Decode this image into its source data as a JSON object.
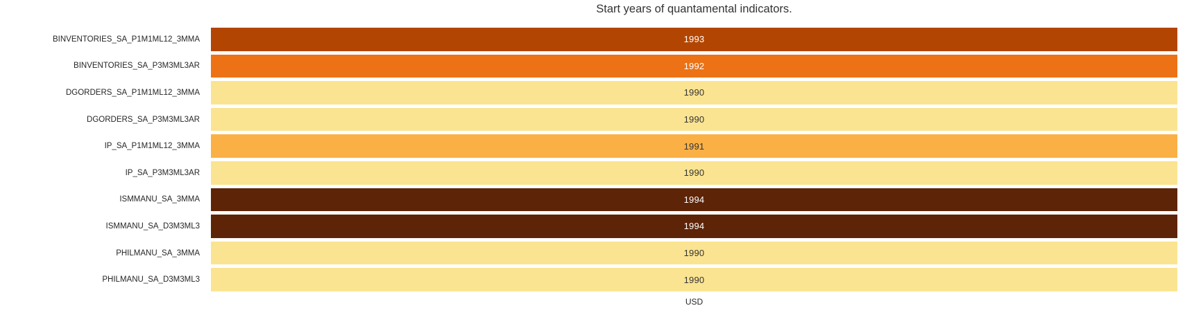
{
  "title": "Start years of quantamental indicators.",
  "x_axis_label": "USD",
  "colors": {
    "background": "#ffffff",
    "title_text": "#333333",
    "axis_label_text": "#262626",
    "value_text_on_dark": "#ffffff",
    "value_text_on_light": "#333333",
    "year_1990": "#fbe491",
    "year_1991": "#fbb045",
    "year_1992": "#ec7215",
    "year_1993": "#b34502",
    "year_1994": "#5e2408"
  },
  "chart_data": {
    "type": "heatmap",
    "title": "Start years of quantamental indicators.",
    "columns": [
      "USD"
    ],
    "rows": [
      "BINVENTORIES_SA_P1M1ML12_3MMA",
      "BINVENTORIES_SA_P3M3ML3AR",
      "DGORDERS_SA_P1M1ML12_3MMA",
      "DGORDERS_SA_P3M3ML3AR",
      "IP_SA_P1M1ML12_3MMA",
      "IP_SA_P3M3ML3AR",
      "ISMMANU_SA_3MMA",
      "ISMMANU_SA_D3M3ML3",
      "PHILMANU_SA_3MMA",
      "PHILMANU_SA_D3M3ML3"
    ],
    "values": [
      [
        1993
      ],
      [
        1992
      ],
      [
        1990
      ],
      [
        1990
      ],
      [
        1991
      ],
      [
        1990
      ],
      [
        1994
      ],
      [
        1994
      ],
      [
        1990
      ],
      [
        1990
      ]
    ],
    "value_range": [
      1990,
      1994
    ],
    "colormap": "YlOrBr",
    "legend": "none",
    "grid": "off",
    "cells": [
      {
        "label": "BINVENTORIES_SA_P1M1ML12_3MMA",
        "value": "1993",
        "color": "#b34502",
        "text_color": "#ffffff"
      },
      {
        "label": "BINVENTORIES_SA_P3M3ML3AR",
        "value": "1992",
        "color": "#ec7215",
        "text_color": "#ffffff"
      },
      {
        "label": "DGORDERS_SA_P1M1ML12_3MMA",
        "value": "1990",
        "color": "#fbe491",
        "text_color": "#333333"
      },
      {
        "label": "DGORDERS_SA_P3M3ML3AR",
        "value": "1990",
        "color": "#fbe491",
        "text_color": "#333333"
      },
      {
        "label": "IP_SA_P1M1ML12_3MMA",
        "value": "1991",
        "color": "#fbb045",
        "text_color": "#333333"
      },
      {
        "label": "IP_SA_P3M3ML3AR",
        "value": "1990",
        "color": "#fbe491",
        "text_color": "#333333"
      },
      {
        "label": "ISMMANU_SA_3MMA",
        "value": "1994",
        "color": "#5e2408",
        "text_color": "#ffffff"
      },
      {
        "label": "ISMMANU_SA_D3M3ML3",
        "value": "1994",
        "color": "#5e2408",
        "text_color": "#ffffff"
      },
      {
        "label": "PHILMANU_SA_3MMA",
        "value": "1990",
        "color": "#fbe491",
        "text_color": "#333333"
      },
      {
        "label": "PHILMANU_SA_D3M3ML3",
        "value": "1990",
        "color": "#fbe491",
        "text_color": "#333333"
      }
    ]
  }
}
